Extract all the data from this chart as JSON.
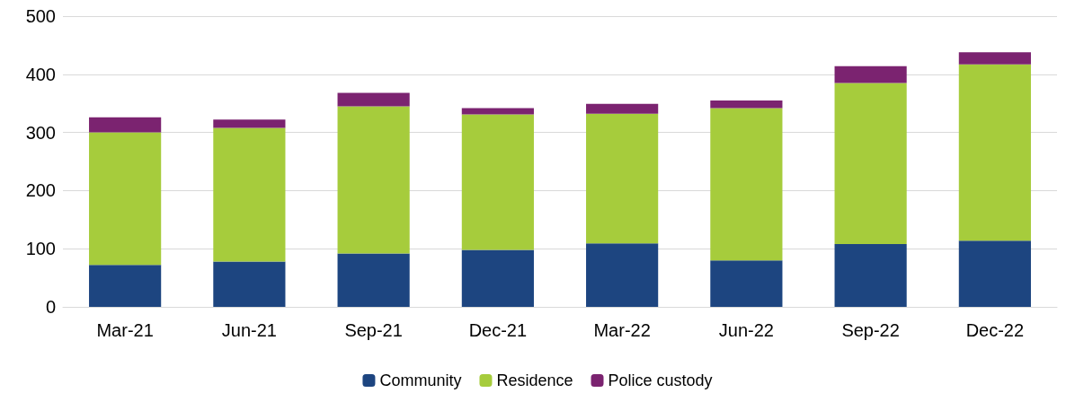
{
  "chart_data": {
    "type": "bar",
    "stacked": true,
    "categories": [
      "Mar-21",
      "Jun-21",
      "Sep-21",
      "Dec-21",
      "Mar-22",
      "Jun-22",
      "Sep-22",
      "Dec-22"
    ],
    "series": [
      {
        "name": "Community",
        "color": "#1d4580",
        "values": [
          72,
          78,
          92,
          98,
          109,
          80,
          108,
          114
        ]
      },
      {
        "name": "Residence",
        "color": "#a6cc3c",
        "values": [
          228,
          230,
          253,
          233,
          223,
          262,
          277,
          303
        ]
      },
      {
        "name": "Police custody",
        "color": "#7b2370",
        "values": [
          26,
          14,
          23,
          11,
          17,
          13,
          29,
          21
        ]
      }
    ],
    "ylim": [
      0,
      500
    ],
    "yticks": [
      0,
      100,
      200,
      300,
      400,
      500
    ],
    "grid": "y",
    "legend": "bottom"
  }
}
